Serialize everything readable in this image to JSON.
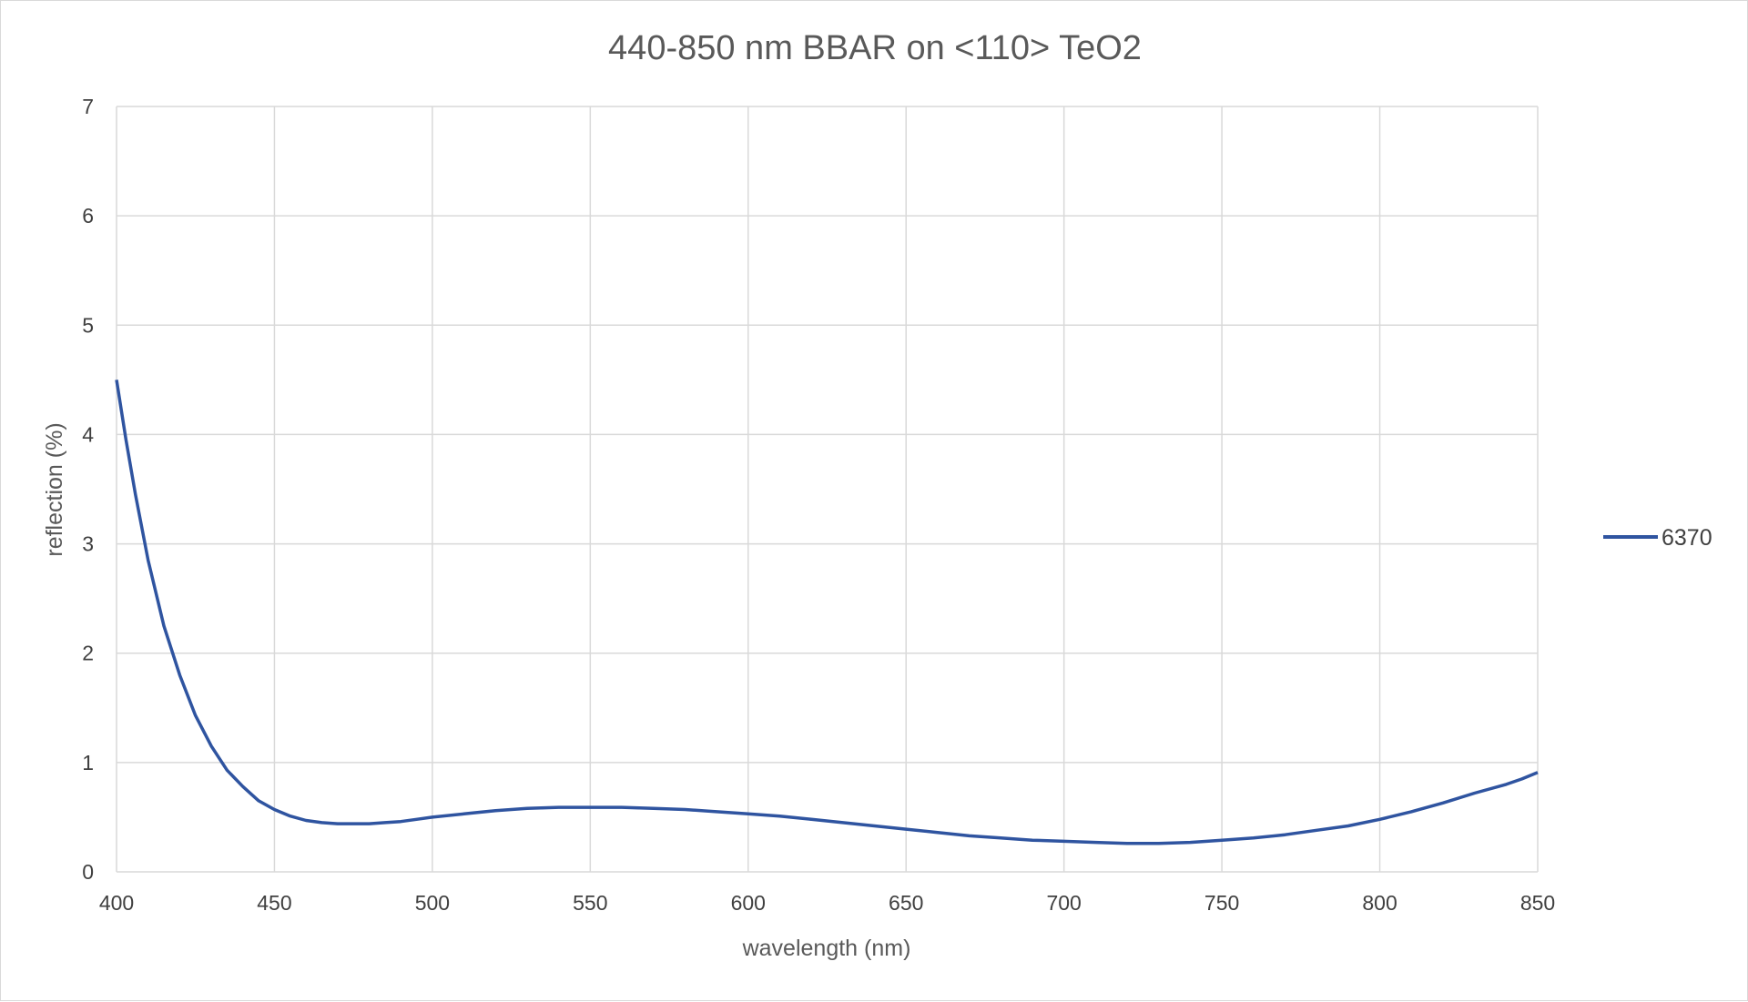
{
  "chart_data": {
    "type": "line",
    "title": "440-850 nm BBAR on <110> TeO2",
    "xlabel": "wavelength (nm)",
    "ylabel": "reflection (%)",
    "xlim": [
      400,
      850
    ],
    "ylim": [
      0,
      7
    ],
    "x_ticks": [
      400,
      450,
      500,
      550,
      600,
      650,
      700,
      750,
      800,
      850
    ],
    "y_ticks": [
      0,
      1,
      2,
      3,
      4,
      5,
      6,
      7
    ],
    "grid": true,
    "legend_position": "right",
    "series": [
      {
        "name": "6370",
        "color": "#2f54a0",
        "x": [
          400,
          403,
          406,
          410,
          415,
          420,
          425,
          430,
          435,
          440,
          445,
          450,
          455,
          460,
          465,
          470,
          475,
          480,
          485,
          490,
          495,
          500,
          510,
          520,
          530,
          540,
          550,
          560,
          570,
          580,
          590,
          600,
          610,
          620,
          630,
          640,
          650,
          660,
          670,
          680,
          690,
          700,
          710,
          720,
          730,
          740,
          750,
          760,
          770,
          780,
          790,
          800,
          810,
          820,
          830,
          840,
          845,
          850
        ],
        "y": [
          4.5,
          3.95,
          3.45,
          2.85,
          2.25,
          1.8,
          1.43,
          1.15,
          0.93,
          0.78,
          0.65,
          0.57,
          0.51,
          0.47,
          0.45,
          0.44,
          0.44,
          0.44,
          0.45,
          0.46,
          0.48,
          0.5,
          0.53,
          0.56,
          0.58,
          0.59,
          0.59,
          0.59,
          0.58,
          0.57,
          0.55,
          0.53,
          0.51,
          0.48,
          0.45,
          0.42,
          0.39,
          0.36,
          0.33,
          0.31,
          0.29,
          0.28,
          0.27,
          0.26,
          0.26,
          0.27,
          0.29,
          0.31,
          0.34,
          0.38,
          0.42,
          0.48,
          0.55,
          0.63,
          0.72,
          0.8,
          0.85,
          0.91
        ]
      }
    ]
  }
}
